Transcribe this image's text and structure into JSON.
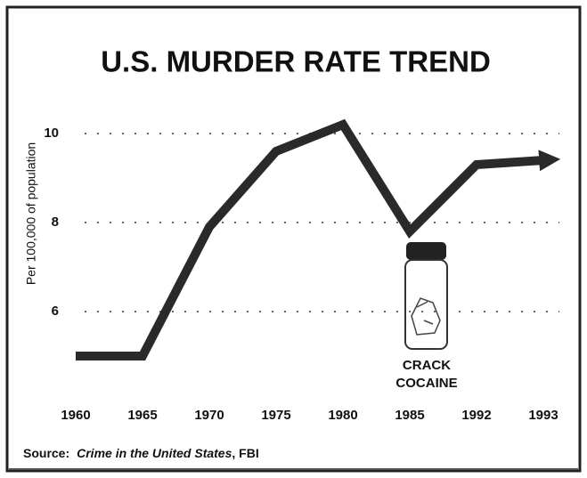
{
  "chart_data": {
    "type": "line",
    "title": "U.S. MURDER RATE TREND",
    "y_label": "Per 100,000 of population",
    "categories": [
      "1960",
      "1965",
      "1970",
      "1975",
      "1980",
      "1985",
      "1992",
      "1993"
    ],
    "values": [
      5.0,
      5.0,
      7.9,
      9.6,
      10.2,
      7.8,
      9.3,
      9.4
    ],
    "color": "#2a2a2a",
    "ylim": [
      4.5,
      10.5
    ],
    "yticks": [
      6,
      8,
      10
    ],
    "grid": true,
    "annotation": [
      "CRACK",
      "COCAINE"
    ],
    "source": {
      "label": "Source:",
      "title": "Crime in the United States",
      "publisher": ", FBI"
    }
  }
}
